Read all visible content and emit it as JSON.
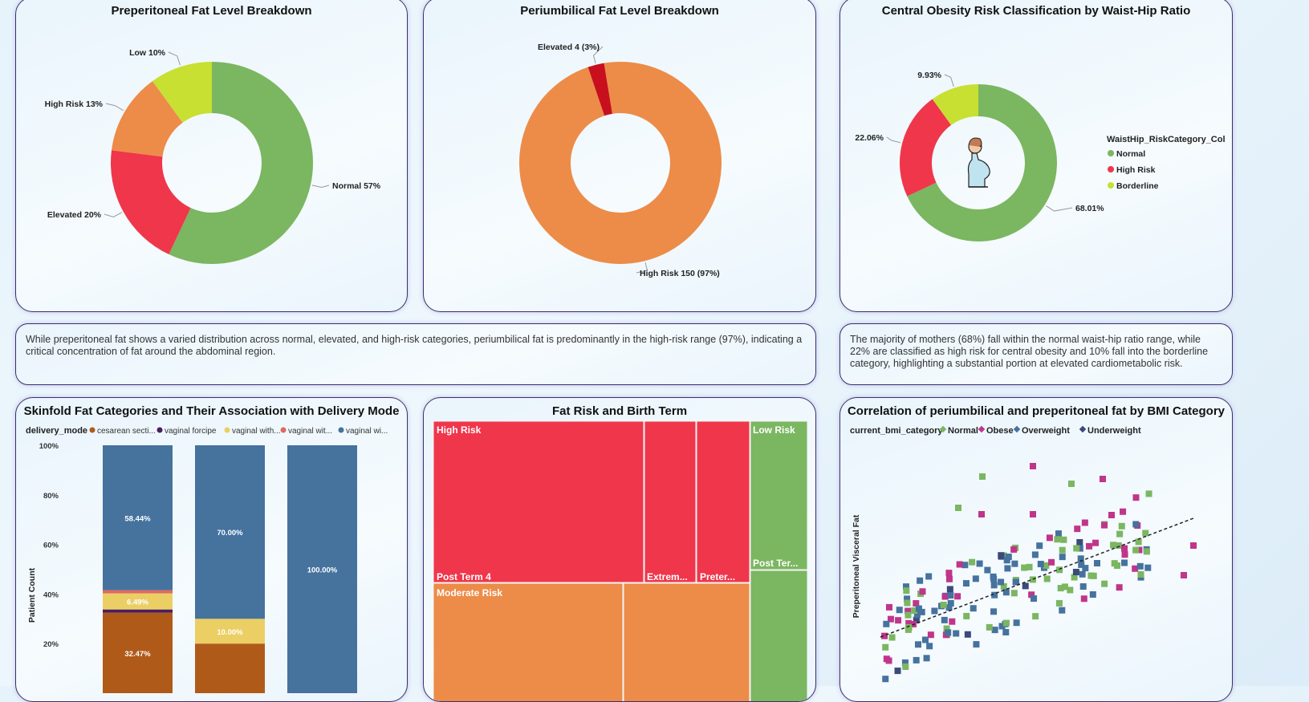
{
  "colors": {
    "green": "#7bb661",
    "red": "#f0364b",
    "orange": "#ec8c48",
    "lime": "#c7e032",
    "darkred": "#c80f1e",
    "blue": "#46729e",
    "brown": "#b05a1a",
    "purple": "#4b1e5e",
    "yellow": "#ebcf64",
    "salmon": "#e06a60",
    "magenta": "#c0358a",
    "navy": "#3a4a7a"
  },
  "cards": {
    "preperitoneal": {
      "title": "Preperitoneal Fat Level Breakdown",
      "chart_data": {
        "type": "pie",
        "slices": [
          {
            "label": "Normal 57%",
            "value": 57
          },
          {
            "label": "Elevated 20%",
            "value": 20
          },
          {
            "label": "High Risk 13%",
            "value": 13
          },
          {
            "label": "Low 10%",
            "value": 10
          }
        ]
      }
    },
    "periumbilical": {
      "title": "Periumbilical Fat Level Breakdown",
      "chart_data": {
        "type": "pie",
        "slices": [
          {
            "label": "High Risk 150 (97%)",
            "value": 150
          },
          {
            "label": "Elevated 4 (3%)",
            "value": 4
          }
        ]
      }
    },
    "waisthip": {
      "title": "Central Obesity Risk Classification by Waist-Hip Ratio",
      "legend_title": "WaistHip_RiskCategory_Col",
      "chart_data": {
        "type": "pie",
        "slices": [
          {
            "label": "68.01%",
            "name": "Normal",
            "value": 68.01
          },
          {
            "label": "22.06%",
            "name": "High Risk",
            "value": 22.06
          },
          {
            "label": "9.93%",
            "name": "Borderline",
            "value": 9.93
          }
        ]
      }
    },
    "skinfold": {
      "title": "Skinfold Fat Categories and Their Association with Delivery Mode",
      "legend_title": "delivery_mode",
      "legend_items": [
        "cesarean secti...",
        "vaginal forcipe",
        "vaginal with...",
        "vaginal wit...",
        "vaginal wi..."
      ],
      "y_axis_title": "Patient Count",
      "chart_data": {
        "type": "bar",
        "stacked": "100%",
        "yticks": [
          "20%",
          "40%",
          "60%",
          "80%",
          "100%"
        ],
        "bars": [
          {
            "segments": [
              {
                "series": "cesarean secti...",
                "value": 32.47,
                "label": "32.47%"
              },
              {
                "series": "vaginal forcipe",
                "value": 1.3,
                "label": ""
              },
              {
                "series": "vaginal with...",
                "value": 6.49,
                "label": "6.49%"
              },
              {
                "series": "vaginal wit...",
                "value": 1.3,
                "label": ""
              },
              {
                "series": "vaginal wi...",
                "value": 58.44,
                "label": "58.44%"
              }
            ]
          },
          {
            "segments": [
              {
                "series": "cesarean secti...",
                "value": 20,
                "label": ""
              },
              {
                "series": "vaginal with...",
                "value": 10,
                "label": "10.00%"
              },
              {
                "series": "vaginal wi...",
                "value": 70,
                "label": "70.00%"
              }
            ]
          },
          {
            "segments": [
              {
                "series": "vaginal wi...",
                "value": 100,
                "label": "100.00%"
              }
            ]
          }
        ]
      }
    },
    "treemap": {
      "title": "Fat Risk and Birth Term",
      "chart_data": {
        "type": "heatmap",
        "labels": [
          "High Risk",
          "Post Term 4",
          "Extrem...",
          "Preter...",
          "Moderate Risk",
          "Low Risk",
          "Post Ter..."
        ]
      }
    },
    "scatter": {
      "title": "Correlation of periumbilical and preperitoneal fat by BMI Category",
      "legend_title": "current_bmi_category",
      "legend_items": [
        "Normal",
        "Obese",
        "Overweight",
        "Underweight"
      ],
      "y_axis_title": "Preperitoneal Visceral Fat",
      "chart_data": {
        "type": "scatter"
      }
    }
  },
  "narratives": {
    "left": "While preperitoneal fat shows a varied distribution across normal, elevated, and high-risk categories, periumbilical fat is predominantly in the high-risk range (97%), indicating a critical concentration of fat around the abdominal region.",
    "right": "The majority of mothers (68%) fall within the normal waist-hip ratio range, while 22% are classified as high risk for central obesity and 10% fall into the borderline category, highlighting a substantial portion at elevated cardiometabolic risk."
  }
}
